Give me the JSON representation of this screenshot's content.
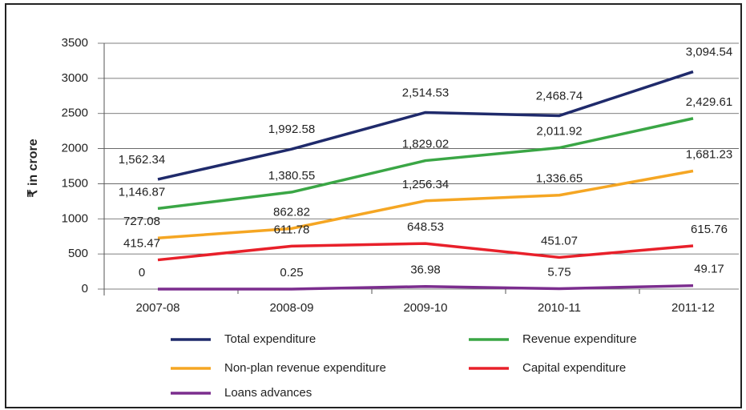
{
  "chart_data": {
    "type": "line",
    "y_label": "₹ in crore",
    "categories": [
      "2007-08",
      "2008-09",
      "2009-10",
      "2010-11",
      "2011-12"
    ],
    "series": [
      {
        "name": "Total expenditure",
        "color": "#1f2a6b",
        "values": [
          1562.34,
          1992.58,
          2514.53,
          2468.74,
          3094.54
        ],
        "value_labels": [
          "1,562.34",
          "1,992.58",
          "2,514.53",
          "2,468.74",
          "3,094.54"
        ]
      },
      {
        "name": "Revenue expenditure",
        "color": "#3aa645",
        "values": [
          1146.87,
          1380.55,
          1829.02,
          2011.92,
          2429.61
        ],
        "value_labels": [
          "1,146.87",
          "1,380.55",
          "1,829.02",
          "2,011.92",
          "2,429.61"
        ]
      },
      {
        "name": "Non-plan revenue expenditure",
        "color": "#f5a623",
        "values": [
          727.08,
          862.82,
          1256.34,
          1336.65,
          1681.23
        ],
        "value_labels": [
          "727.08",
          "862.82",
          "1,256.34",
          "1,336.65",
          "1,681.23"
        ]
      },
      {
        "name": "Capital expenditure",
        "color": "#e8202a",
        "values": [
          415.47,
          611.78,
          648.53,
          451.07,
          615.76
        ],
        "value_labels": [
          "415.47",
          "611.78",
          "648.53",
          "451.07",
          "615.76"
        ]
      },
      {
        "name": "Loans advances",
        "color": "#7b2d8e",
        "values": [
          0,
          0.25,
          36.98,
          5.75,
          49.17
        ],
        "value_labels": [
          "0",
          "0.25",
          "36.98",
          "5.75",
          "49.17"
        ]
      }
    ],
    "ylim": [
      0,
      3500
    ],
    "yticks": [
      0,
      500,
      1000,
      1500,
      2000,
      2500,
      3000,
      3500
    ],
    "grid": true,
    "legend": "bottom"
  }
}
